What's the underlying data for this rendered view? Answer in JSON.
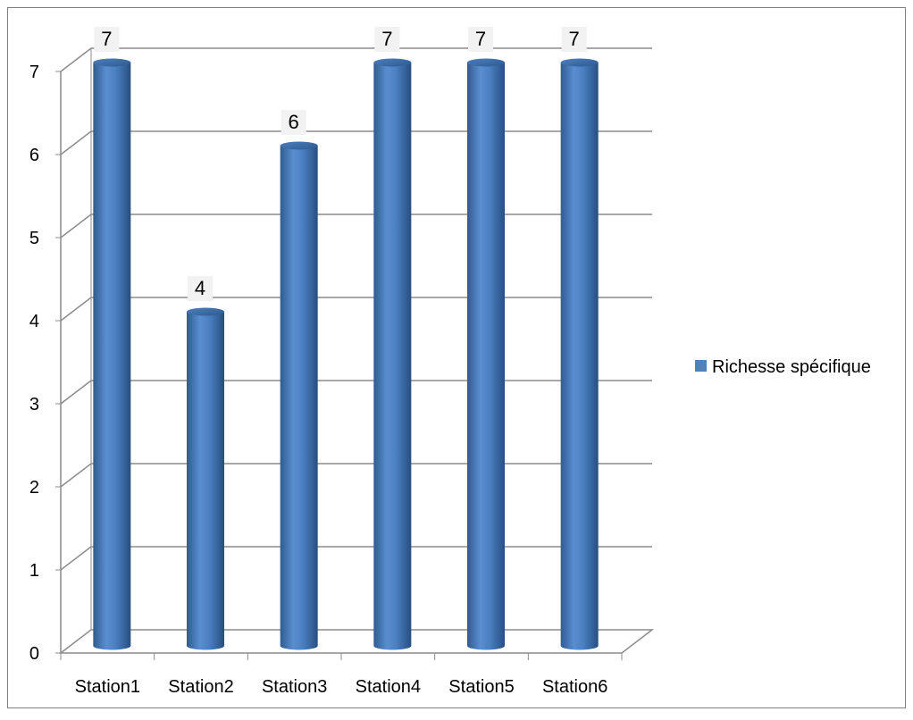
{
  "chart_data": {
    "type": "bar",
    "title": "",
    "xlabel": "",
    "ylabel": "",
    "categories": [
      "Station1",
      "Station2",
      "Station3",
      "Station4",
      "Station5",
      "Station6"
    ],
    "series": [
      {
        "name": "Richesse spécifique",
        "values": [
          7,
          4,
          6,
          7,
          7,
          7
        ],
        "color": "#4F81BD"
      }
    ],
    "ylim": [
      0,
      7
    ],
    "yticks": [
      0,
      1,
      2,
      3,
      4,
      5,
      6,
      7
    ],
    "grid": true,
    "legend": "right",
    "data_labels": true
  }
}
